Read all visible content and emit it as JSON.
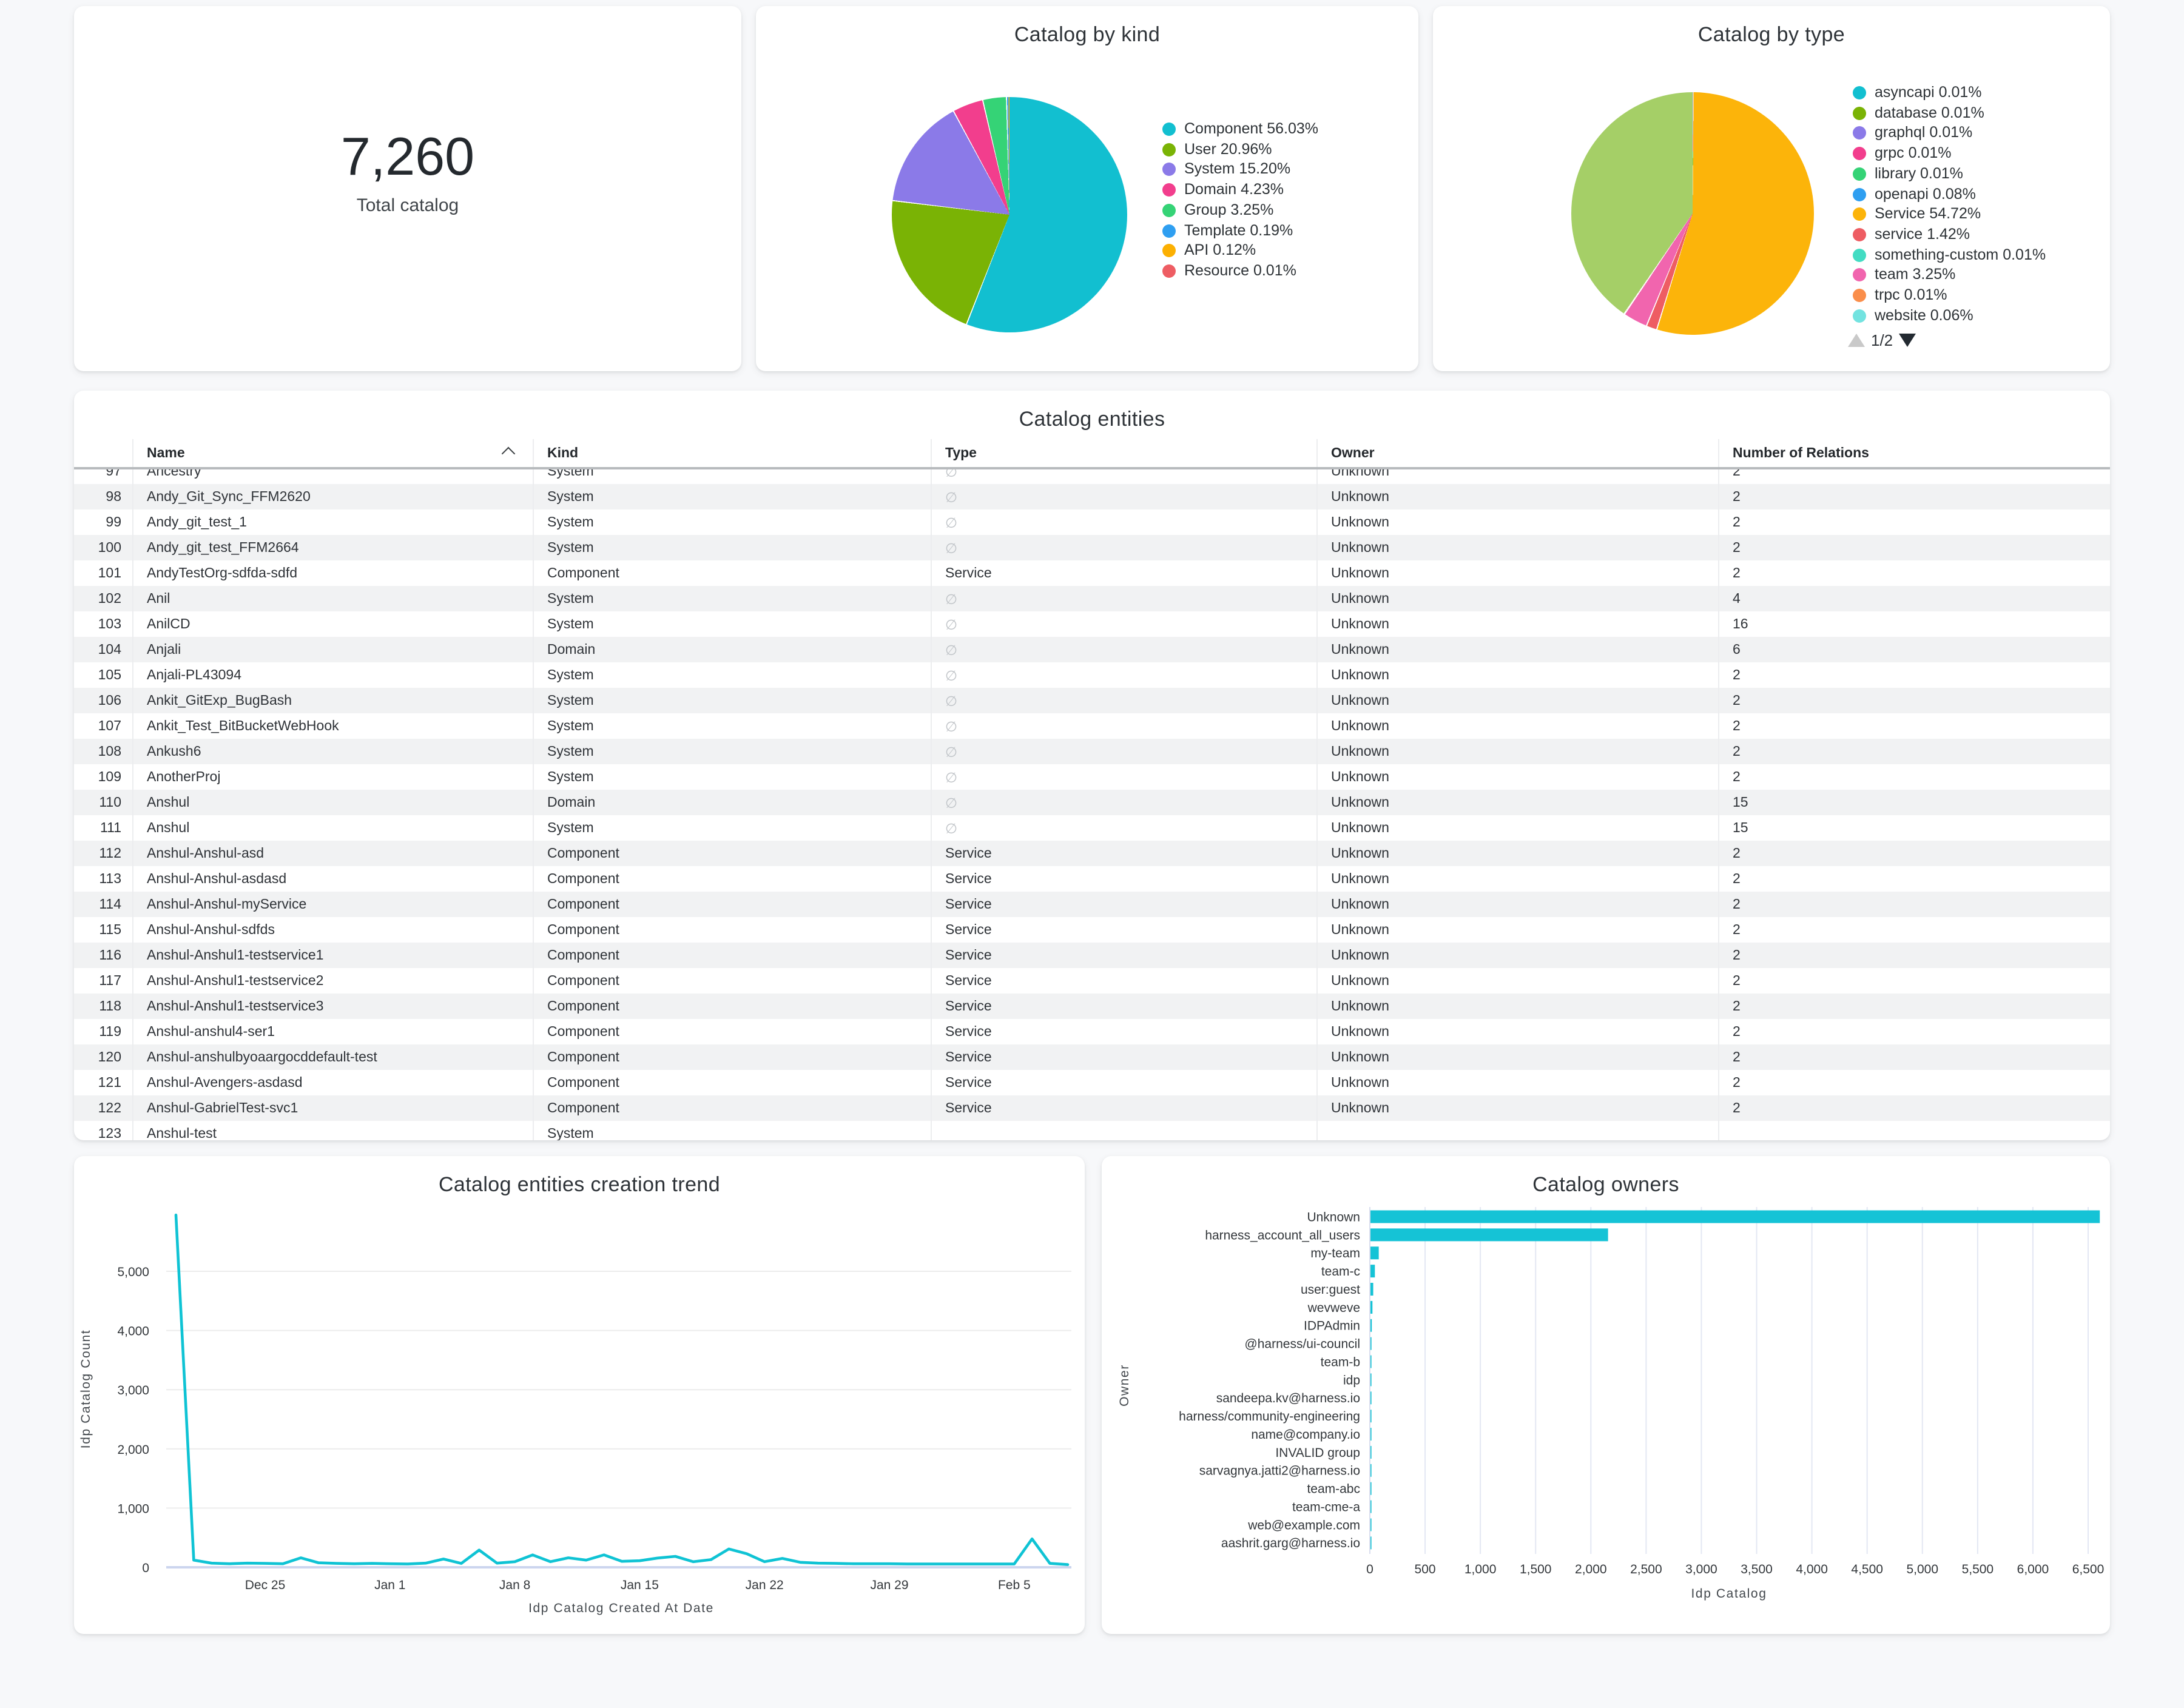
{
  "stat_card": {
    "value": "7,260",
    "label": "Total catalog"
  },
  "entities_table": {
    "title": "Catalog entities",
    "columns": [
      "Name",
      "Kind",
      "Type",
      "Owner",
      "Number of Relations"
    ],
    "sorted_column": "Name",
    "empty_type_symbol": "∅",
    "rows": [
      {
        "n": 97,
        "name": "Ancestry",
        "kind": "System",
        "type": "",
        "owner": "Unknown",
        "relations": "2"
      },
      {
        "n": 98,
        "name": "Andy_Git_Sync_FFM2620",
        "kind": "System",
        "type": "",
        "owner": "Unknown",
        "relations": "2"
      },
      {
        "n": 99,
        "name": "Andy_git_test_1",
        "kind": "System",
        "type": "",
        "owner": "Unknown",
        "relations": "2"
      },
      {
        "n": 100,
        "name": "Andy_git_test_FFM2664",
        "kind": "System",
        "type": "",
        "owner": "Unknown",
        "relations": "2"
      },
      {
        "n": 101,
        "name": "AndyTestOrg-sdfda-sdfd",
        "kind": "Component",
        "type": "Service",
        "owner": "Unknown",
        "relations": "2"
      },
      {
        "n": 102,
        "name": "Anil",
        "kind": "System",
        "type": "",
        "owner": "Unknown",
        "relations": "4"
      },
      {
        "n": 103,
        "name": "AnilCD",
        "kind": "System",
        "type": "",
        "owner": "Unknown",
        "relations": "16"
      },
      {
        "n": 104,
        "name": "Anjali",
        "kind": "Domain",
        "type": "",
        "owner": "Unknown",
        "relations": "6"
      },
      {
        "n": 105,
        "name": "Anjali-PL43094",
        "kind": "System",
        "type": "",
        "owner": "Unknown",
        "relations": "2"
      },
      {
        "n": 106,
        "name": "Ankit_GitExp_BugBash",
        "kind": "System",
        "type": "",
        "owner": "Unknown",
        "relations": "2"
      },
      {
        "n": 107,
        "name": "Ankit_Test_BitBucketWebHook",
        "kind": "System",
        "type": "",
        "owner": "Unknown",
        "relations": "2"
      },
      {
        "n": 108,
        "name": "Ankush6",
        "kind": "System",
        "type": "",
        "owner": "Unknown",
        "relations": "2"
      },
      {
        "n": 109,
        "name": "AnotherProj",
        "kind": "System",
        "type": "",
        "owner": "Unknown",
        "relations": "2"
      },
      {
        "n": 110,
        "name": "Anshul",
        "kind": "Domain",
        "type": "",
        "owner": "Unknown",
        "relations": "15"
      },
      {
        "n": 111,
        "name": "Anshul",
        "kind": "System",
        "type": "",
        "owner": "Unknown",
        "relations": "15"
      },
      {
        "n": 112,
        "name": "Anshul-Anshul-asd",
        "kind": "Component",
        "type": "Service",
        "owner": "Unknown",
        "relations": "2"
      },
      {
        "n": 113,
        "name": "Anshul-Anshul-asdasd",
        "kind": "Component",
        "type": "Service",
        "owner": "Unknown",
        "relations": "2"
      },
      {
        "n": 114,
        "name": "Anshul-Anshul-myService",
        "kind": "Component",
        "type": "Service",
        "owner": "Unknown",
        "relations": "2"
      },
      {
        "n": 115,
        "name": "Anshul-Anshul-sdfds",
        "kind": "Component",
        "type": "Service",
        "owner": "Unknown",
        "relations": "2"
      },
      {
        "n": 116,
        "name": "Anshul-Anshul1-testservice1",
        "kind": "Component",
        "type": "Service",
        "owner": "Unknown",
        "relations": "2"
      },
      {
        "n": 117,
        "name": "Anshul-Anshul1-testservice2",
        "kind": "Component",
        "type": "Service",
        "owner": "Unknown",
        "relations": "2"
      },
      {
        "n": 118,
        "name": "Anshul-Anshul1-testservice3",
        "kind": "Component",
        "type": "Service",
        "owner": "Unknown",
        "relations": "2"
      },
      {
        "n": 119,
        "name": "Anshul-anshul4-ser1",
        "kind": "Component",
        "type": "Service",
        "owner": "Unknown",
        "relations": "2"
      },
      {
        "n": 120,
        "name": "Anshul-anshulbyoaargocddefault-test",
        "kind": "Component",
        "type": "Service",
        "owner": "Unknown",
        "relations": "2"
      },
      {
        "n": 121,
        "name": "Anshul-Avengers-asdasd",
        "kind": "Component",
        "type": "Service",
        "owner": "Unknown",
        "relations": "2"
      },
      {
        "n": 122,
        "name": "Anshul-GabrielTest-svc1",
        "kind": "Component",
        "type": "Service",
        "owner": "Unknown",
        "relations": "2"
      },
      {
        "n": 123,
        "name": "Anshul-test",
        "kind": "System",
        "type": "",
        "owner": "",
        "relations": ""
      }
    ]
  },
  "chart_data": [
    {
      "id": "catalog_by_kind",
      "type": "pie",
      "title": "Catalog by kind",
      "legend_position": "right",
      "slices": [
        {
          "label": "Component",
          "pct": 56.03,
          "color": "#12bfd0"
        },
        {
          "label": "User",
          "pct": 20.96,
          "color": "#7ab305"
        },
        {
          "label": "System",
          "pct": 15.2,
          "color": "#8b7ae8"
        },
        {
          "label": "Domain",
          "pct": 4.23,
          "color": "#f23e8d"
        },
        {
          "label": "Group",
          "pct": 3.25,
          "color": "#35d376"
        },
        {
          "label": "Template",
          "pct": 0.19,
          "color": "#2f9ff1"
        },
        {
          "label": "API",
          "pct": 0.12,
          "color": "#fcb002"
        },
        {
          "label": "Resource",
          "pct": 0.01,
          "color": "#ee5d63"
        }
      ]
    },
    {
      "id": "catalog_by_type",
      "type": "pie",
      "title": "Catalog by type",
      "legend_position": "right",
      "legend_pagination": "1/2",
      "slices": [
        {
          "label": "asyncapi",
          "pct": 0.01,
          "color": "#12bfd0"
        },
        {
          "label": "database",
          "pct": 0.01,
          "color": "#7ab305"
        },
        {
          "label": "graphql",
          "pct": 0.01,
          "color": "#8b7ae8"
        },
        {
          "label": "grpc",
          "pct": 0.01,
          "color": "#f23e8d"
        },
        {
          "label": "library",
          "pct": 0.01,
          "color": "#35d376"
        },
        {
          "label": "openapi",
          "pct": 0.08,
          "color": "#2f9ff1"
        },
        {
          "label": "Service",
          "pct": 54.72,
          "color": "#fcb40a"
        },
        {
          "label": "service",
          "pct": 1.42,
          "color": "#ee5d63"
        },
        {
          "label": "something-custom",
          "pct": 0.01,
          "color": "#43dcc3"
        },
        {
          "label": "team",
          "pct": 3.25,
          "color": "#f165ae"
        },
        {
          "label": "trpc",
          "pct": 0.01,
          "color": "#fa8e4b"
        },
        {
          "label": "website",
          "pct": 0.06,
          "color": "#73e3e0"
        },
        {
          "label": "other",
          "pct": 40.41,
          "color": "#a5cf67",
          "in_legend": false
        }
      ]
    },
    {
      "id": "creation_trend",
      "type": "line",
      "title": "Catalog entities creation trend",
      "xlabel": "Idp Catalog Created At Date",
      "ylabel": "Idp Catalog Count",
      "line_color": "#0fc3d4",
      "grid": true,
      "ylim": [
        0,
        6000
      ],
      "yticks": [
        0,
        1000,
        2000,
        3000,
        4000,
        5000
      ],
      "xticks": [
        {
          "day": 5,
          "label": "Dec 25"
        },
        {
          "day": 12,
          "label": "Jan 1"
        },
        {
          "day": 19,
          "label": "Jan 8"
        },
        {
          "day": 26,
          "label": "Jan 15"
        },
        {
          "day": 33,
          "label": "Jan 22"
        },
        {
          "day": 40,
          "label": "Jan 29"
        },
        {
          "day": 47,
          "label": "Feb 5"
        }
      ],
      "values": [
        5950,
        120,
        70,
        60,
        70,
        65,
        60,
        160,
        75,
        65,
        60,
        65,
        60,
        55,
        70,
        140,
        65,
        290,
        70,
        95,
        210,
        95,
        160,
        120,
        210,
        100,
        110,
        155,
        185,
        95,
        130,
        310,
        230,
        95,
        150,
        85,
        70,
        65,
        60,
        60,
        60,
        55,
        55,
        55,
        55,
        55,
        55,
        55,
        480,
        65,
        45
      ]
    },
    {
      "id": "catalog_owners",
      "type": "bar",
      "orientation": "horizontal",
      "title": "Catalog owners",
      "xlabel": "Idp Catalog",
      "ylabel": "Owner",
      "bar_color": "#15c3d6",
      "grid": true,
      "xlim": [
        0,
        6500
      ],
      "xticks": [
        0,
        500,
        1000,
        1500,
        2000,
        2500,
        3000,
        3500,
        4000,
        4500,
        5000,
        5500,
        6000,
        6500
      ],
      "categories": [
        "Unknown",
        "harness_account_all_users",
        "my-team",
        "team-c",
        "user:guest",
        "wevweve",
        "IDPAdmin",
        "@harness/ui-council",
        "team-b",
        "idp",
        "sandeepa.kv@harness.io",
        "harness/community-engineering",
        "name@company.io",
        "INVALID group",
        "sarvagnya.jatti2@harness.io",
        "team-abc",
        "team-cme-a",
        "web@example.com",
        "aashrit.garg@harness.io"
      ],
      "values": [
        6600,
        2150,
        75,
        40,
        25,
        18,
        12,
        9,
        7,
        6,
        5,
        4,
        3,
        3,
        2,
        2,
        2,
        1,
        1
      ]
    }
  ]
}
